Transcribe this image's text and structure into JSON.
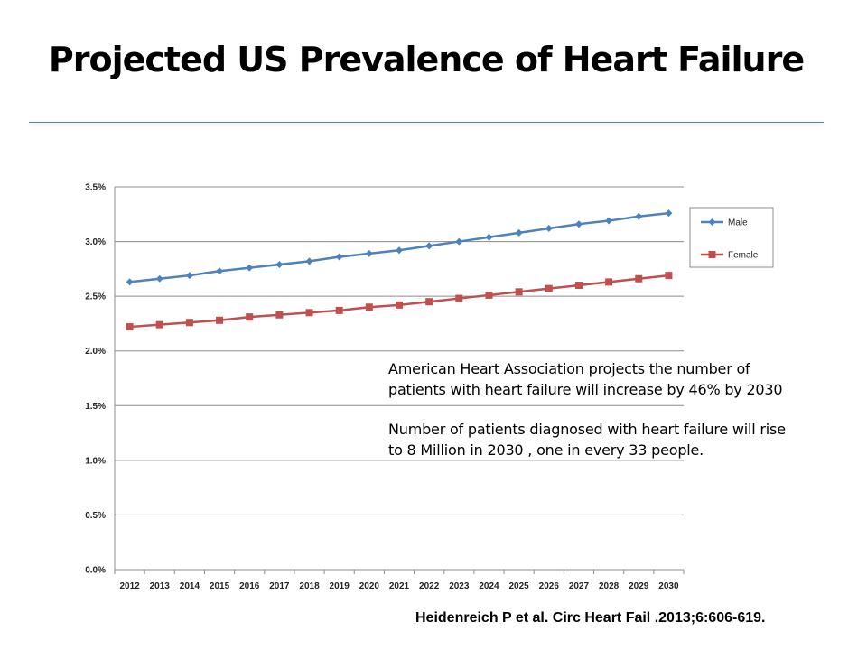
{
  "slide": {
    "title": "Projected US Prevalence  of Heart Failure",
    "annotation": {
      "paragraph1": "American Heart Association projects the number of patients with heart failure will increase by 46% by 2030",
      "paragraph2": "Number of patients diagnosed with heart failure will rise to  8 Million in 2030 , one in every 33 people."
    },
    "citation": "Heidenreich P et al. Circ Heart Fail .2013;6:606-619."
  },
  "chart_data": {
    "type": "line",
    "title": "",
    "xlabel": "",
    "ylabel": "",
    "x": [
      2012,
      2013,
      2014,
      2015,
      2016,
      2017,
      2018,
      2019,
      2020,
      2021,
      2022,
      2023,
      2024,
      2025,
      2026,
      2027,
      2028,
      2029,
      2030
    ],
    "ylim": [
      0,
      3.5
    ],
    "yticks": [
      0.0,
      0.5,
      1.0,
      1.5,
      2.0,
      2.5,
      3.0,
      3.5
    ],
    "ytick_labels": [
      "0.0%",
      "0.5%",
      "1.0%",
      "1.5%",
      "2.0%",
      "2.5%",
      "3.0%",
      "3.5%"
    ],
    "grid": "horizontal",
    "legend_position": "right",
    "series": [
      {
        "name": "Male",
        "color": "#4f81bd",
        "marker": "diamond",
        "values": [
          2.63,
          2.66,
          2.69,
          2.73,
          2.76,
          2.79,
          2.82,
          2.86,
          2.89,
          2.92,
          2.96,
          3.0,
          3.04,
          3.08,
          3.12,
          3.16,
          3.19,
          3.23,
          3.26
        ]
      },
      {
        "name": "Female",
        "color": "#c0504d",
        "marker": "square",
        "values": [
          2.22,
          2.24,
          2.26,
          2.28,
          2.31,
          2.33,
          2.35,
          2.37,
          2.4,
          2.42,
          2.45,
          2.48,
          2.51,
          2.54,
          2.57,
          2.6,
          2.63,
          2.66,
          2.69
        ]
      }
    ]
  }
}
